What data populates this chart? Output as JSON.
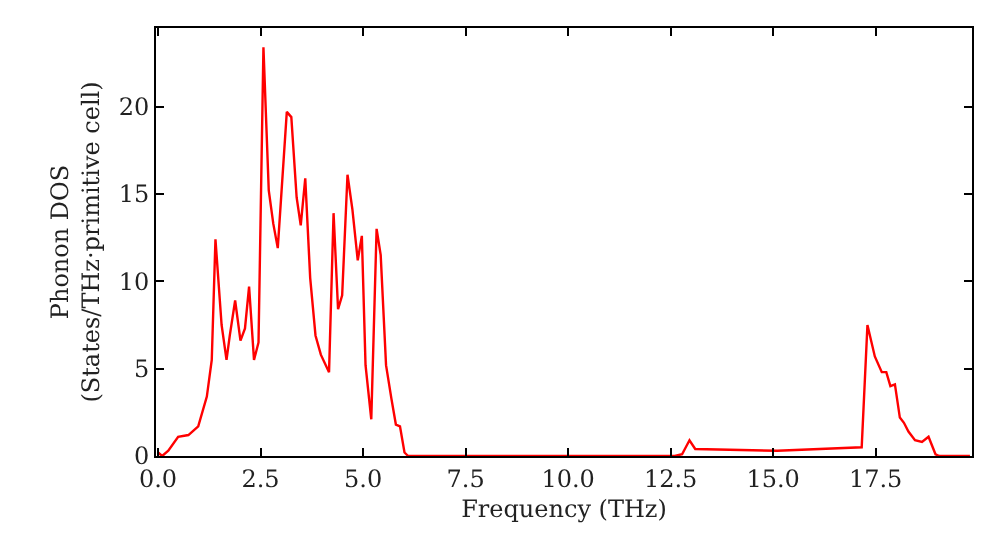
{
  "chart_data": {
    "type": "line",
    "xlabel": "Frequency (THz)",
    "ylabel": "Phonon DOS\n(States/THz·primitive cell)",
    "xlim": [
      -0.05,
      19.85
    ],
    "ylim": [
      0,
      24.5
    ],
    "xticks": [
      {
        "value": 0,
        "label": "0.0"
      },
      2.5,
      {
        "value": 5,
        "label": "5.0"
      },
      7.5,
      {
        "value": 10,
        "label": "10.0"
      },
      12.5,
      {
        "value": 15,
        "label": "15.0"
      },
      17.5
    ],
    "yticks": [
      0,
      5,
      10,
      15,
      20
    ],
    "marker": "none",
    "line_style": "solid",
    "series": [
      {
        "color": "#ff0000",
        "x": [
          0,
          0.1,
          0.25,
          0.49,
          0.74,
          0.98,
          1.19,
          1.31,
          1.4,
          1.55,
          1.67,
          1.75,
          1.88,
          2.01,
          2.12,
          2.22,
          2.34,
          2.45,
          2.57,
          2.7,
          2.81,
          2.92,
          3.14,
          3.25,
          3.38,
          3.48,
          3.59,
          3.71,
          3.84,
          3.97,
          4.17,
          4.28,
          4.39,
          4.49,
          4.62,
          4.74,
          4.87,
          4.97,
          5.06,
          5.2,
          5.33,
          5.43,
          5.56,
          5.69,
          5.8,
          5.9,
          6.01,
          6.1,
          12.6,
          12.78,
          12.96,
          13.1,
          15.1,
          17.16,
          17.3,
          17.48,
          17.65,
          17.76,
          17.86,
          17.97,
          18.09,
          18.19,
          18.3,
          18.46,
          18.63,
          18.79,
          18.96,
          19.05,
          19.8
        ],
        "values": [
          0.2,
          0.0,
          0.3,
          1.1,
          1.2,
          1.7,
          3.4,
          5.5,
          12.4,
          7.5,
          5.5,
          6.9,
          8.9,
          6.6,
          7.3,
          9.7,
          5.5,
          6.5,
          23.4,
          15.2,
          13.3,
          11.9,
          19.7,
          19.4,
          14.8,
          13.2,
          15.9,
          10.2,
          6.9,
          5.8,
          4.8,
          13.9,
          8.4,
          9.2,
          16.1,
          14.1,
          11.2,
          12.6,
          5.2,
          2.1,
          13.0,
          11.5,
          5.2,
          3.3,
          1.8,
          1.7,
          0.2,
          0.0,
          0.0,
          0.1,
          0.9,
          0.4,
          0.3,
          0.5,
          7.5,
          5.7,
          4.8,
          4.8,
          4.0,
          4.1,
          2.2,
          1.9,
          1.4,
          0.9,
          0.8,
          1.1,
          0.1,
          0.0,
          0.0
        ]
      }
    ]
  }
}
